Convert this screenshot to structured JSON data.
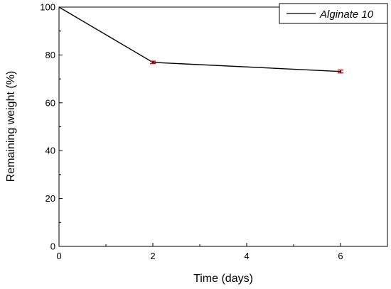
{
  "chart_data": {
    "type": "line",
    "title": "",
    "xlabel": "Time (days)",
    "ylabel": "Remaining weight (%)",
    "xlim": [
      0,
      7
    ],
    "ylim": [
      0,
      100
    ],
    "x_ticks": [
      0,
      2,
      4,
      6
    ],
    "y_ticks": [
      0,
      20,
      40,
      60,
      80,
      100
    ],
    "grid": false,
    "legend": {
      "position": "top-right"
    },
    "series": [
      {
        "name": "Alginate 10",
        "x": [
          0,
          2,
          6
        ],
        "y": [
          100,
          76.9,
          73.1
        ],
        "error": [
          0,
          0.5,
          0.6
        ],
        "line_color": "#000000",
        "error_color": "#e8000b"
      }
    ]
  }
}
